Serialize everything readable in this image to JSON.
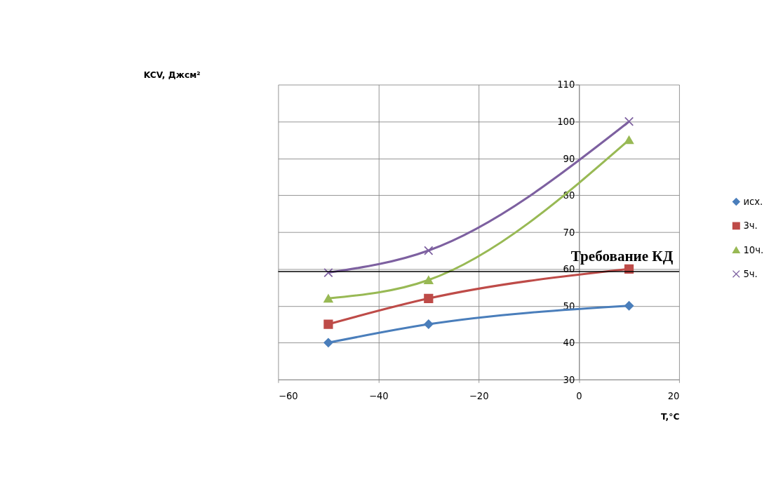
{
  "chart_data": {
    "type": "line",
    "xlabel": "T,°C",
    "annotations": [
      "KCV, Джсм²"
    ],
    "x": [
      -50,
      -30,
      10
    ],
    "series": [
      {
        "name": "исх.",
        "color": "#4a7ebb",
        "marker": "diamond",
        "values": [
          40,
          45,
          50
        ]
      },
      {
        "name": "3ч.",
        "color": "#be4b48",
        "marker": "square",
        "values": [
          45,
          52,
          60
        ]
      },
      {
        "name": "10ч.",
        "color": "#98b954",
        "marker": "triangle",
        "values": [
          52,
          57,
          95
        ]
      },
      {
        "name": "5ч.",
        "color": "#7d60a0",
        "marker": "cross",
        "values": [
          59,
          65,
          100
        ]
      }
    ],
    "xlim": [
      -60,
      20
    ],
    "xticks": [
      -60,
      -40,
      -20,
      0,
      20
    ],
    "ylim": [
      30,
      110
    ],
    "yticks": [
      30,
      40,
      50,
      60,
      70,
      80,
      90,
      100,
      110
    ],
    "ref_lines": [
      {
        "axis": "y",
        "value": 59.3,
        "label": "Требование КД",
        "color": "#000000"
      }
    ],
    "grid": true,
    "legend": "right",
    "line_style": "solid"
  }
}
